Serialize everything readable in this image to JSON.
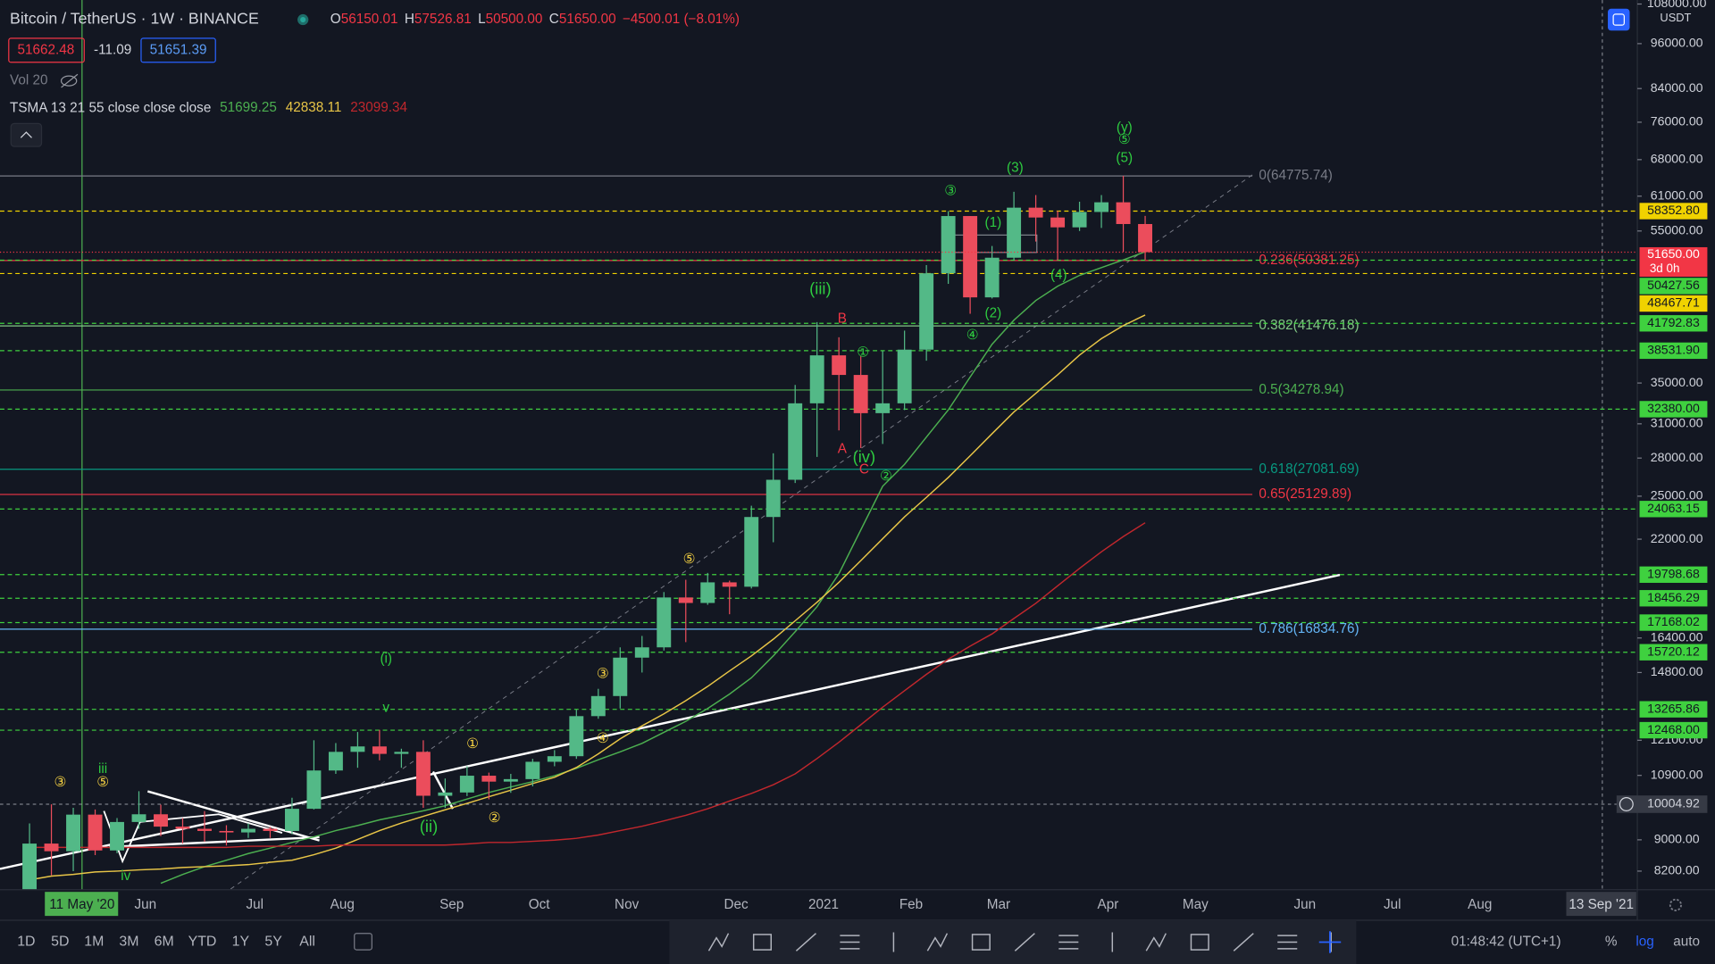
{
  "header": {
    "symbol": "Bitcoin / TetherUS · 1W · BINANCE",
    "ohlc": [
      {
        "key": "O",
        "value": "56150.01"
      },
      {
        "key": "H",
        "value": "57526.81"
      },
      {
        "key": "L",
        "value": "50500.00"
      },
      {
        "key": "C",
        "value": "51650.00"
      }
    ],
    "change": "−4500.01 (−8.01%)",
    "bid": "51662.48",
    "spread": "-11.09",
    "ask": "51651.39",
    "volume": "Vol 20",
    "indicator": "TSMA 13 21 55 close close close",
    "currency": "USDT"
  },
  "chart_data": {
    "type": "candlestick",
    "log_scale": true,
    "grid": false,
    "categories": [
      null,
      null,
      null,
      null,
      null,
      "Jun",
      null,
      null,
      null,
      null,
      "Jul",
      null,
      null,
      null,
      "Aug",
      null,
      null,
      null,
      null,
      "Sep",
      null,
      null,
      null,
      "Oct",
      null,
      null,
      null,
      "Nov",
      null,
      null,
      null,
      null,
      "Dec",
      null,
      null,
      null,
      "2021",
      null,
      null,
      null,
      "Feb",
      null,
      null,
      null,
      "Mar",
      null,
      null,
      null,
      null,
      "Apr",
      null,
      null,
      null,
      "May",
      null,
      null,
      null,
      null,
      "Jun",
      null,
      null,
      null,
      "Jul",
      null,
      null,
      null,
      "Aug",
      null,
      null,
      null,
      null,
      null,
      null
    ],
    "open": [
      7700,
      8900,
      8700,
      9700,
      8720,
      9490,
      9710,
      9360,
      9300,
      9240,
      9200,
      9300,
      9240,
      9870,
      11060,
      11690,
      11880,
      11620,
      11690,
      10260,
      10360,
      10890,
      10700,
      10780,
      11350,
      11540,
      13000,
      13800,
      15470,
      15950,
      18500,
      18200,
      19350,
      19100,
      23500,
      26250,
      32950,
      38000,
      35850,
      32000,
      32950,
      38650,
      48500,
      57500,
      45150,
      50800,
      58950,
      57250,
      55600,
      58200,
      59900,
      56150.01,
      null,
      null,
      null,
      null,
      null,
      null,
      null,
      null,
      null,
      null,
      null,
      null,
      null,
      null,
      null,
      null,
      null,
      null,
      null,
      null,
      null
    ],
    "high": [
      9450,
      10000,
      9900,
      9850,
      9600,
      10400,
      9990,
      9600,
      9800,
      9400,
      9450,
      9350,
      10200,
      12100,
      12000,
      12400,
      12480,
      11800,
      12100,
      10800,
      11200,
      10990,
      10950,
      11450,
      11750,
      13250,
      14100,
      15950,
      16500,
      18800,
      19500,
      19900,
      19450,
      24300,
      28400,
      34800,
      41950,
      40100,
      37900,
      38500,
      40900,
      49700,
      58350,
      57500,
      52600,
      61800,
      61200,
      58400,
      60000,
      61200,
      64800,
      57526.81,
      null,
      null,
      null,
      null,
      null,
      null,
      null,
      null,
      null,
      null,
      null,
      null,
      null,
      null,
      null,
      null,
      null,
      null,
      null,
      null,
      null
    ],
    "low": [
      7600,
      8100,
      8200,
      8600,
      8650,
      9300,
      9100,
      8900,
      8950,
      8850,
      9050,
      9050,
      9150,
      9850,
      10950,
      11150,
      11400,
      11150,
      9900,
      9900,
      10250,
      10150,
      10350,
      10550,
      11200,
      11450,
      12900,
      13300,
      14800,
      15800,
      16200,
      18100,
      17600,
      19000,
      21800,
      26000,
      28100,
      30400,
      28850,
      29200,
      32300,
      37400,
      47000,
      43000,
      45000,
      50400,
      53300,
      50400,
      55000,
      55500,
      51700,
      50500,
      null,
      null,
      null,
      null,
      null,
      null,
      null,
      null,
      null,
      null,
      null,
      null,
      null,
      null,
      null,
      null,
      null,
      null,
      null,
      null,
      null
    ],
    "close": [
      8900,
      8700,
      9700,
      8720,
      9490,
      9710,
      9360,
      9300,
      9240,
      9200,
      9300,
      9240,
      9870,
      11060,
      11690,
      11880,
      11620,
      11690,
      10260,
      10360,
      10890,
      10700,
      10780,
      11350,
      11540,
      13000,
      13800,
      15470,
      15950,
      18500,
      18200,
      19350,
      19100,
      23500,
      26250,
      32950,
      38000,
      35850,
      32000,
      32950,
      38650,
      48500,
      57500,
      45150,
      50800,
      58950,
      57250,
      55600,
      58200,
      59900,
      56150.01,
      51650,
      null,
      null,
      null,
      null,
      null,
      null,
      null,
      null,
      null,
      null,
      null,
      null,
      null,
      null,
      null,
      null,
      null,
      null,
      null,
      null,
      null
    ],
    "up_color": "#53b987",
    "down_color": "#eb4d5c",
    "series": [
      {
        "color": "#4caf50",
        "values": [
          null,
          null,
          null,
          null,
          null,
          null,
          7910,
          8120,
          8310,
          8470,
          8640,
          8780,
          8930,
          9080,
          9250,
          9390,
          9550,
          9680,
          9810,
          9960,
          10160,
          10360,
          10530,
          10700,
          10890,
          11130,
          11420,
          11690,
          11990,
          12390,
          12800,
          13300,
          13880,
          14570,
          15550,
          16710,
          18000,
          19850,
          22610,
          25750,
          27480,
          29800,
          32310,
          35630,
          39270,
          42190,
          44730,
          46680,
          48200,
          49330,
          50470,
          51699.25,
          null,
          null,
          null,
          null,
          null,
          null,
          null,
          null,
          null,
          null,
          null,
          null,
          null,
          null,
          null,
          null,
          null,
          null,
          null,
          null,
          null
        ]
      },
      {
        "color": "#e8c547",
        "values": [
          7990,
          8080,
          8120,
          8180,
          8200,
          8230,
          8250,
          8290,
          8310,
          8330,
          8360,
          8420,
          8470,
          8610,
          8780,
          9010,
          9250,
          9460,
          9650,
          9840,
          10030,
          10230,
          10430,
          10640,
          10840,
          11160,
          11620,
          12150,
          12630,
          13090,
          13610,
          14200,
          14870,
          15550,
          16340,
          17260,
          18240,
          19350,
          20640,
          22030,
          23510,
          24910,
          26430,
          28190,
          30100,
          32110,
          33940,
          35860,
          38030,
          39940,
          41520,
          42838.11,
          null,
          null,
          null,
          null,
          null,
          null,
          null,
          null,
          null,
          null,
          null,
          null,
          null,
          null,
          null,
          null,
          null,
          null,
          null,
          null,
          null
        ]
      },
      {
        "color": "#c0272d",
        "values": [
          8800,
          8800,
          8800,
          8800,
          8800,
          8800,
          8800,
          8800,
          8800,
          8800,
          8830,
          8830,
          8830,
          8830,
          8860,
          8860,
          8860,
          8860,
          8860,
          8860,
          8890,
          8930,
          8930,
          8960,
          8990,
          9040,
          9130,
          9250,
          9370,
          9520,
          9680,
          9870,
          10100,
          10330,
          10600,
          10950,
          11460,
          12030,
          12670,
          13350,
          14020,
          14720,
          15400,
          16010,
          16600,
          17380,
          18180,
          19150,
          20170,
          21190,
          22170,
          23099.34,
          null,
          null,
          null,
          null,
          null,
          null,
          null,
          null,
          null,
          null,
          null,
          null,
          null,
          null,
          null,
          null,
          null,
          null,
          null,
          null,
          null
        ]
      }
    ],
    "ylim": [
      7760,
      109300
    ],
    "yticks": [
      {
        "value": 8200,
        "label": "8200.00"
      },
      {
        "value": 9000,
        "label": "9000.00"
      },
      {
        "value": 10900,
        "label": "10900.00"
      },
      {
        "value": 12100,
        "label": "12100.00"
      },
      {
        "value": 14800,
        "label": "14800.00"
      },
      {
        "value": 16400,
        "label": "16400.00"
      },
      {
        "value": 22000,
        "label": "22000.00"
      },
      {
        "value": 25000,
        "label": "25000.00"
      },
      {
        "value": 28000,
        "label": "28000.00"
      },
      {
        "value": 31000,
        "label": "31000.00"
      },
      {
        "value": 35000,
        "label": "35000.00"
      },
      {
        "value": 55000,
        "label": "55000.00"
      },
      {
        "value": 61000,
        "label": "61000.00"
      },
      {
        "value": 68000,
        "label": "68000.00"
      },
      {
        "value": 76000,
        "label": "76000.00"
      },
      {
        "value": 84000,
        "label": "84000.00"
      },
      {
        "value": 96000,
        "label": "96000.00"
      },
      {
        "value": 108000,
        "label": "108000.00"
      }
    ],
    "fib_levels": [
      {
        "value": 64775.74,
        "label": "0(64775.74)",
        "color": "#787b86"
      },
      {
        "value": 50381.25,
        "label": "0.236(50381.25)",
        "color": "#f23645"
      },
      {
        "value": 41476.18,
        "label": "0.382(41476.18)",
        "color": "#81c784"
      },
      {
        "value": 34278.94,
        "label": "0.5(34278.94)",
        "color": "#4caf50"
      },
      {
        "value": 27081.69,
        "label": "0.618(27081.69)",
        "color": "#089981"
      },
      {
        "value": 25129.89,
        "label": "0.65(25129.89)",
        "color": "#f23645"
      },
      {
        "value": 16834.76,
        "label": "0.786(16834.76)",
        "color": "#64b5f6"
      }
    ],
    "price_line": {
      "value": 51650,
      "label": "51650.00",
      "countdown": "3d 0h",
      "color": "#f23645"
    },
    "levels": [
      {
        "value": 58352.8,
        "label": "58352.80",
        "color": "#f0d200"
      },
      {
        "value": 50427.56,
        "label": "50427.56",
        "color": "#3fd13f"
      },
      {
        "value": 48467.71,
        "label": "48467.71",
        "color": "#f0d200"
      },
      {
        "value": 41792.83,
        "label": "41792.83",
        "color": "#3fd13f"
      },
      {
        "value": 38531.9,
        "label": "38531.90",
        "color": "#3fd13f"
      },
      {
        "value": 32380,
        "label": "32380.00",
        "color": "#3fd13f"
      },
      {
        "value": 24063.15,
        "label": "24063.15",
        "color": "#3fd13f"
      },
      {
        "value": 19798.68,
        "label": "19798.68",
        "color": "#3fd13f"
      },
      {
        "value": 18456.29,
        "label": "18456.29",
        "color": "#3fd13f"
      },
      {
        "value": 17168.02,
        "label": "17168.02",
        "color": "#3fd13f"
      },
      {
        "value": 15720.12,
        "label": "15720.12",
        "color": "#3fd13f"
      },
      {
        "value": 13265.86,
        "label": "13265.86",
        "color": "#3fd13f"
      },
      {
        "value": 12468,
        "label": "12468.00",
        "color": "#3fd13f"
      }
    ],
    "crosshair": {
      "value": 10004.92,
      "label": "10004.92",
      "time_label": "11 May '20"
    },
    "date_marker_label": "13 Sep '21",
    "annotations": [
      {
        "text": "③",
        "color": "#f5d142"
      },
      {
        "text": "⑤",
        "color": "#f5d142"
      },
      {
        "text": "iii",
        "color": "#2ecc40"
      },
      {
        "text": "iv",
        "color": "#2ecc40"
      },
      {
        "text": "(i)",
        "color": "#2ecc40"
      },
      {
        "text": "v",
        "color": "#2ecc40"
      },
      {
        "text": "①",
        "color": "#f5d142"
      },
      {
        "text": "(ii)",
        "color": "#2ecc40"
      },
      {
        "text": "②",
        "color": "#f5d142"
      },
      {
        "text": "③",
        "color": "#f5d142"
      },
      {
        "text": "④",
        "color": "#f5d142"
      },
      {
        "text": "⑤",
        "color": "#f5d142"
      },
      {
        "text": "(iii)",
        "color": "#2ecc40"
      },
      {
        "text": "B",
        "color": "#f23645"
      },
      {
        "text": "①",
        "color": "#2ecc40"
      },
      {
        "text": "A",
        "color": "#f23645"
      },
      {
        "text": "(iv)",
        "color": "#2ecc40"
      },
      {
        "text": "C",
        "color": "#f23645"
      },
      {
        "text": "②",
        "color": "#2ecc40"
      },
      {
        "text": "③",
        "color": "#2ecc40"
      },
      {
        "text": "④",
        "color": "#2ecc40"
      },
      {
        "text": "(1)",
        "color": "#2ecc40"
      },
      {
        "text": "(2)",
        "color": "#2ecc40"
      },
      {
        "text": "(3)",
        "color": "#2ecc40"
      },
      {
        "text": "(4)",
        "color": "#2ecc40"
      },
      {
        "text": "(5)",
        "color": "#2ecc40"
      },
      {
        "text": "⑤",
        "color": "#2ecc40"
      },
      {
        "text": "(y)",
        "color": "#2ecc40"
      }
    ]
  },
  "toolbar": {
    "ranges": [
      "1D",
      "5D",
      "1M",
      "3M",
      "6M",
      "YTD",
      "1Y",
      "5Y",
      "All"
    ],
    "clock": "01:48:42 (UTC+1)",
    "percent": "%",
    "log": "log",
    "auto": "auto"
  }
}
